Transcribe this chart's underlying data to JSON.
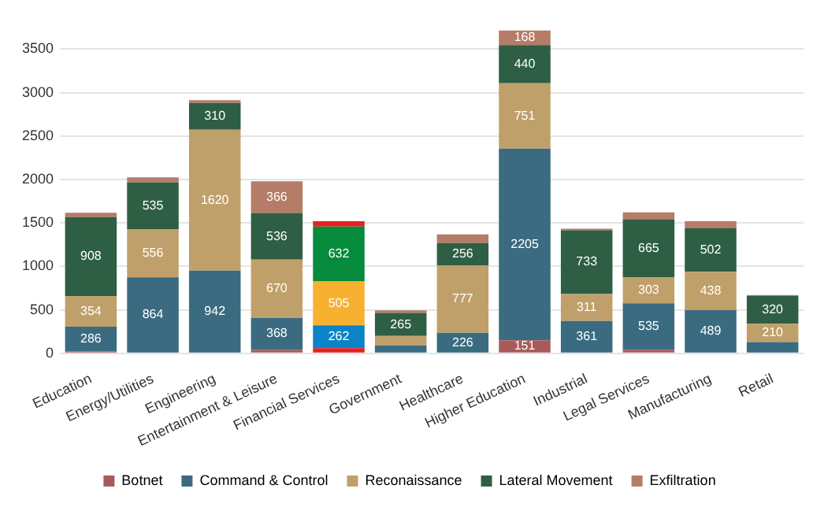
{
  "chart_data": {
    "type": "bar",
    "stacked": true,
    "categories": [
      "Education",
      "Energy/Utilities",
      "Engineering",
      "Entertainment & Leisure",
      "Financial Services",
      "Government",
      "Healthcare",
      "Higher Education",
      "Industrial",
      "Legal Services",
      "Manufacturing",
      "Retail"
    ],
    "series": [
      {
        "name": "Botnet",
        "color": "#a85a5a",
        "colors": [
          "#a85a5a",
          "#a85a5a",
          "#a85a5a",
          "#a85a5a",
          "#e8201e",
          "#a85a5a",
          "#a85a5a",
          "#a85a5a",
          "#a85a5a",
          "#a85a5a",
          "#a85a5a",
          "#a85a5a"
        ],
        "values": [
          20,
          10,
          10,
          40,
          60,
          10,
          10,
          151,
          10,
          40,
          10,
          10
        ],
        "value_labels": [
          null,
          null,
          null,
          null,
          null,
          null,
          null,
          "151",
          null,
          null,
          null,
          null
        ]
      },
      {
        "name": "Command & Control",
        "color": "#3a6b80",
        "colors": [
          "#3a6b80",
          "#3a6b80",
          "#3a6b80",
          "#3a6b80",
          "#0a84c6",
          "#3a6b80",
          "#3a6b80",
          "#3a6b80",
          "#3a6b80",
          "#3a6b80",
          "#3a6b80",
          "#3a6b80"
        ],
        "values": [
          286,
          864,
          942,
          368,
          262,
          80,
          226,
          2205,
          361,
          535,
          489,
          120
        ],
        "value_labels": [
          "286",
          "864",
          "942",
          "368",
          "262",
          null,
          "226",
          "2205",
          "361",
          "535",
          "489",
          null
        ]
      },
      {
        "name": "Reconaissance",
        "color": "#c0a06a",
        "colors": [
          "#c0a06a",
          "#c0a06a",
          "#c0a06a",
          "#c0a06a",
          "#f8b030",
          "#c0a06a",
          "#c0a06a",
          "#c0a06a",
          "#c0a06a",
          "#c0a06a",
          "#c0a06a",
          "#c0a06a"
        ],
        "values": [
          354,
          556,
          1620,
          670,
          505,
          110,
          777,
          751,
          311,
          303,
          438,
          210
        ],
        "value_labels": [
          "354",
          "556",
          "1620",
          "670",
          "505",
          null,
          "777",
          "751",
          "311",
          "303",
          "438",
          "210"
        ]
      },
      {
        "name": "Lateral Movement",
        "color": "#2e5e44",
        "colors": [
          "#2e5e44",
          "#2e5e44",
          "#2e5e44",
          "#2e5e44",
          "#068a3c",
          "#2e5e44",
          "#2e5e44",
          "#2e5e44",
          "#2e5e44",
          "#2e5e44",
          "#2e5e44",
          "#2e5e44"
        ],
        "values": [
          908,
          535,
          310,
          536,
          632,
          265,
          256,
          440,
          733,
          665,
          502,
          320
        ],
        "value_labels": [
          "908",
          "535",
          "310",
          "536",
          "632",
          "265",
          "256",
          "440",
          "733",
          "665",
          "502",
          "320"
        ]
      },
      {
        "name": "Exfiltration",
        "color": "#b57c68",
        "colors": [
          "#b57c68",
          "#b57c68",
          "#b57c68",
          "#b57c68",
          "#e8201e",
          "#b57c68",
          "#b57c68",
          "#b57c68",
          "#b57c68",
          "#b57c68",
          "#b57c68",
          "#b57c68"
        ],
        "values": [
          50,
          60,
          30,
          366,
          60,
          30,
          100,
          168,
          20,
          80,
          80,
          10
        ],
        "value_labels": [
          null,
          null,
          null,
          "366",
          null,
          null,
          null,
          "168",
          null,
          null,
          null,
          null
        ]
      }
    ],
    "ylim": [
      0,
      3750
    ],
    "yticks": [
      0,
      500,
      1000,
      1500,
      2000,
      2500,
      3000,
      3500
    ],
    "grid": "y",
    "legend": "bottom"
  }
}
